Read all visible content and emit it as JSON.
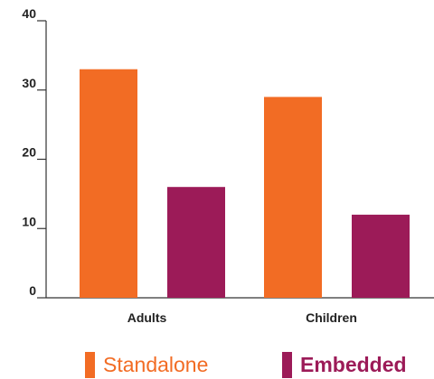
{
  "chart_data": {
    "type": "bar",
    "categories": [
      "Adults",
      "Children"
    ],
    "series": [
      {
        "name": "Standalone",
        "values": [
          33,
          29
        ],
        "color": "#f26c24"
      },
      {
        "name": "Embedded",
        "values": [
          16,
          12
        ],
        "color": "#9c1b58"
      }
    ],
    "yticks": [
      0,
      10,
      20,
      30,
      40
    ],
    "ylim": [
      0,
      40
    ],
    "title": "",
    "xlabel": "",
    "ylabel": "",
    "grid": false,
    "legend_position": "bottom"
  }
}
